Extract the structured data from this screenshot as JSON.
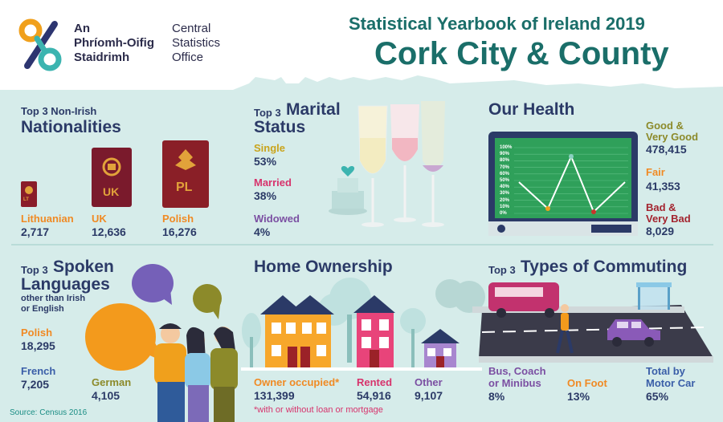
{
  "header": {
    "logo_line1": "An",
    "logo_line2": "Phríomh-Oifig",
    "logo_line3": "Staidrimh",
    "logo_line4": "Central",
    "logo_line5": "Statistics",
    "logo_line6": "Office",
    "title": "Statistical Yearbook of Ireland 2019",
    "subtitle": "Cork City & County"
  },
  "nationalities": {
    "title_small": "Top 3 Non-Irish",
    "title_big": "Nationalities",
    "items": [
      {
        "label": "Lithuanian",
        "value": "2,717",
        "passport": "LT"
      },
      {
        "label": "UK",
        "value": "12,636",
        "passport": "UK"
      },
      {
        "label": "Polish",
        "value": "16,276",
        "passport": "PL"
      }
    ]
  },
  "marital": {
    "title_small": "Top 3",
    "title_big1": "Marital",
    "title_big2": "Status",
    "items": [
      {
        "label": "Single",
        "value": "53%"
      },
      {
        "label": "Married",
        "value": "38%"
      },
      {
        "label": "Widowed",
        "value": "4%"
      }
    ]
  },
  "health": {
    "title": "Our Health",
    "items": [
      {
        "label1": "Good &",
        "label2": "Very Good",
        "value": "478,415"
      },
      {
        "label1": "Fair",
        "label2": "",
        "value": "41,353"
      },
      {
        "label1": "Bad &",
        "label2": "Very Bad",
        "value": "8,029"
      }
    ],
    "yticks": [
      "100%",
      "90%",
      "80%",
      "70%",
      "60%",
      "50%",
      "40%",
      "30%",
      "20%",
      "10%",
      "0%"
    ]
  },
  "languages": {
    "title_small": "Top 3",
    "title_big1": "Spoken",
    "title_big2": "Languages",
    "sub1": "other than Irish",
    "sub2": "or English",
    "items": [
      {
        "label": "Polish",
        "value": "18,295"
      },
      {
        "label": "French",
        "value": "7,205"
      },
      {
        "label": "German",
        "value": "4,105"
      }
    ]
  },
  "home": {
    "title": "Home Ownership",
    "items": [
      {
        "label": "Owner occupied*",
        "value": "131,399"
      },
      {
        "label": "Rented",
        "value": "54,916"
      },
      {
        "label": "Other",
        "value": "9,107"
      }
    ],
    "note": "*with or without loan or mortgage"
  },
  "commuting": {
    "title_small": "Top 3",
    "title_big": "Types of Commuting",
    "items": [
      {
        "label1": "Bus, Coach",
        "label2": "or Minibus",
        "value": "8%"
      },
      {
        "label1": "On Foot",
        "label2": "",
        "value": "13%"
      },
      {
        "label1": "Total by",
        "label2": "Motor Car",
        "value": "65%"
      }
    ]
  },
  "source": "Source: Census 2016",
  "colors": {
    "background": "#d6ecea",
    "header_teal": "#1a6e69",
    "navy": "#2b3a67",
    "orange": "#f08a24",
    "pink": "#d7336c",
    "purple": "#7b4fa2",
    "screen_green": "#2fa05a"
  }
}
